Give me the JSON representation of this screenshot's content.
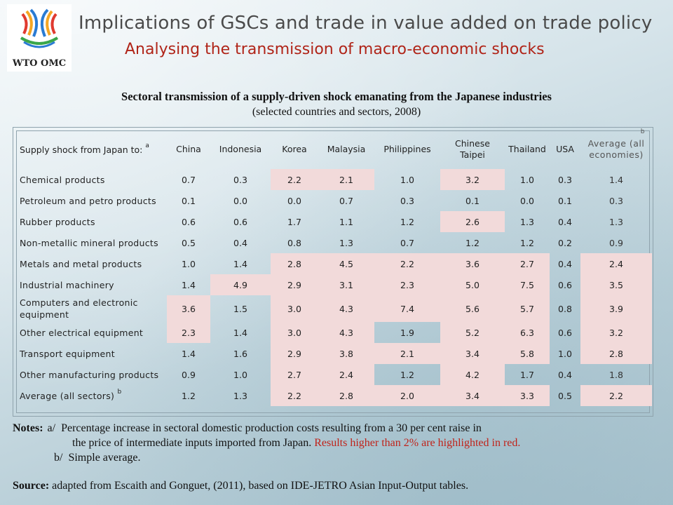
{
  "logo": {
    "text": "WTO OMC"
  },
  "header": {
    "title": "Implications of GSCs and trade in value added on trade policy",
    "subtitle": "Analysing the transmission of macro-economic shocks"
  },
  "caption": {
    "title": "Sectoral transmission of a supply-driven shock emanating from the Japanese industries",
    "subtitle": "(selected countries and sectors, 2008)"
  },
  "table": {
    "row_header": "Supply shock from Japan to:",
    "row_header_note": "a",
    "columns": [
      "China",
      "Indonesia",
      "Korea",
      "Malaysia",
      "Philippines",
      "Chinese Taipei",
      "Thailand",
      "USA",
      "Average (all economies)"
    ],
    "average_note": "b",
    "rows": [
      {
        "label": "Chemical products",
        "values": [
          "0.7",
          "0.3",
          "2.2",
          "2.1",
          "1.0",
          "3.2",
          "1.0",
          "0.3",
          "1.4"
        ],
        "highlight": [
          false,
          false,
          true,
          true,
          false,
          true,
          false,
          false,
          false
        ]
      },
      {
        "label": "Petroleum and petro products",
        "values": [
          "0.1",
          "0.0",
          "0.0",
          "0.7",
          "0.3",
          "0.1",
          "0.0",
          "0.1",
          "0.3"
        ],
        "highlight": [
          false,
          false,
          false,
          false,
          false,
          false,
          false,
          false,
          false
        ]
      },
      {
        "label": "Rubber products",
        "values": [
          "0.6",
          "0.6",
          "1.7",
          "1.1",
          "1.2",
          "2.6",
          "1.3",
          "0.4",
          "1.3"
        ],
        "highlight": [
          false,
          false,
          false,
          false,
          false,
          true,
          false,
          false,
          false
        ]
      },
      {
        "label": "Non-metallic mineral products",
        "values": [
          "0.5",
          "0.4",
          "0.8",
          "1.3",
          "0.7",
          "1.2",
          "1.2",
          "0.2",
          "0.9"
        ],
        "highlight": [
          false,
          false,
          false,
          false,
          false,
          false,
          false,
          false,
          false
        ]
      },
      {
        "label": "Metals and metal products",
        "values": [
          "1.0",
          "1.4",
          "2.8",
          "4.5",
          "2.2",
          "3.6",
          "2.7",
          "0.4",
          "2.4"
        ],
        "highlight": [
          false,
          false,
          true,
          true,
          true,
          true,
          true,
          false,
          true
        ]
      },
      {
        "label": "Industrial machinery",
        "values": [
          "1.4",
          "4.9",
          "2.9",
          "3.1",
          "2.3",
          "5.0",
          "7.5",
          "0.6",
          "3.5"
        ],
        "highlight": [
          false,
          true,
          true,
          true,
          true,
          true,
          true,
          false,
          true
        ]
      },
      {
        "label": "Computers and electronic equipment",
        "values": [
          "3.6",
          "1.5",
          "3.0",
          "4.3",
          "7.4",
          "5.6",
          "5.7",
          "0.8",
          "3.9"
        ],
        "highlight": [
          true,
          false,
          true,
          true,
          true,
          true,
          true,
          false,
          true
        ]
      },
      {
        "label": "Other electrical equipment",
        "values": [
          "2.3",
          "1.4",
          "3.0",
          "4.3",
          "1.9",
          "5.2",
          "6.3",
          "0.6",
          "3.2"
        ],
        "highlight": [
          true,
          false,
          true,
          true,
          false,
          true,
          true,
          false,
          true
        ]
      },
      {
        "label": "Transport equipment",
        "values": [
          "1.4",
          "1.6",
          "2.9",
          "3.8",
          "2.1",
          "3.4",
          "5.8",
          "1.0",
          "2.8"
        ],
        "highlight": [
          false,
          false,
          true,
          true,
          true,
          true,
          true,
          false,
          true
        ]
      },
      {
        "label": "Other manufacturing products",
        "values": [
          "0.9",
          "1.0",
          "2.7",
          "2.4",
          "1.2",
          "4.2",
          "1.7",
          "0.4",
          "1.8"
        ],
        "highlight": [
          false,
          false,
          true,
          true,
          false,
          true,
          false,
          false,
          false
        ]
      },
      {
        "label": "Average (all sectors)",
        "label_note": "b",
        "values": [
          "1.2",
          "1.3",
          "2.2",
          "2.8",
          "2.0",
          "3.4",
          "3.3",
          "0.5",
          "2.2"
        ],
        "highlight": [
          false,
          false,
          true,
          true,
          true,
          true,
          true,
          false,
          true
        ]
      }
    ],
    "highlight_color": "#f2dada"
  },
  "notes": {
    "label": "Notes:",
    "a_marker": "a/",
    "a_line1": "Percentage increase in sectoral domestic production costs resulting from a 30 per cent raise in",
    "a_line2": "the price of intermediate inputs imported from Japan.",
    "a_line2_red": "Results higher than 2% are highlighted in red.",
    "b_marker": "b/",
    "b_text": "Simple average."
  },
  "source": {
    "label": "Source:",
    "text": "adapted from Escaith and Gonguet, (2011), based on IDE-JETRO Asian Input-Output tables."
  }
}
